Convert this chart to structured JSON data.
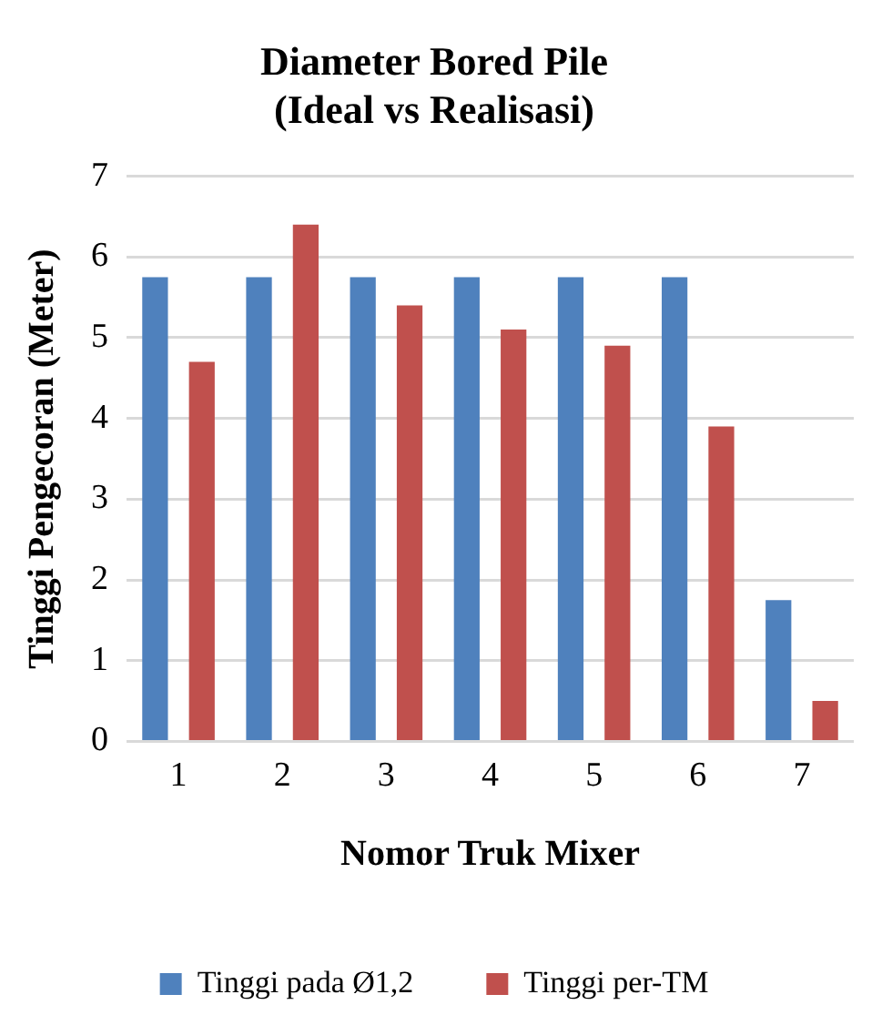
{
  "chart_data": {
    "type": "bar",
    "title": "Diameter Bored Pile\n(Ideal vs Realisasi)",
    "xlabel": "Nomor Truk Mixer",
    "ylabel": "Tinggi Pengecoran (Meter)",
    "categories": [
      "1",
      "2",
      "3",
      "4",
      "5",
      "6",
      "7"
    ],
    "series": [
      {
        "name": "Tinggi pada Ø1,2",
        "color": "#4f81bd",
        "values": [
          5.75,
          5.75,
          5.75,
          5.75,
          5.75,
          5.75,
          1.75
        ]
      },
      {
        "name": "Tinggi per-TM",
        "color": "#c0504d",
        "values": [
          4.7,
          6.4,
          5.4,
          5.1,
          4.9,
          3.9,
          0.5
        ]
      }
    ],
    "ylim": [
      0,
      7
    ],
    "yticks": [
      0,
      1,
      2,
      3,
      4,
      5,
      6,
      7
    ],
    "grid": "y",
    "legend": "bottom"
  }
}
